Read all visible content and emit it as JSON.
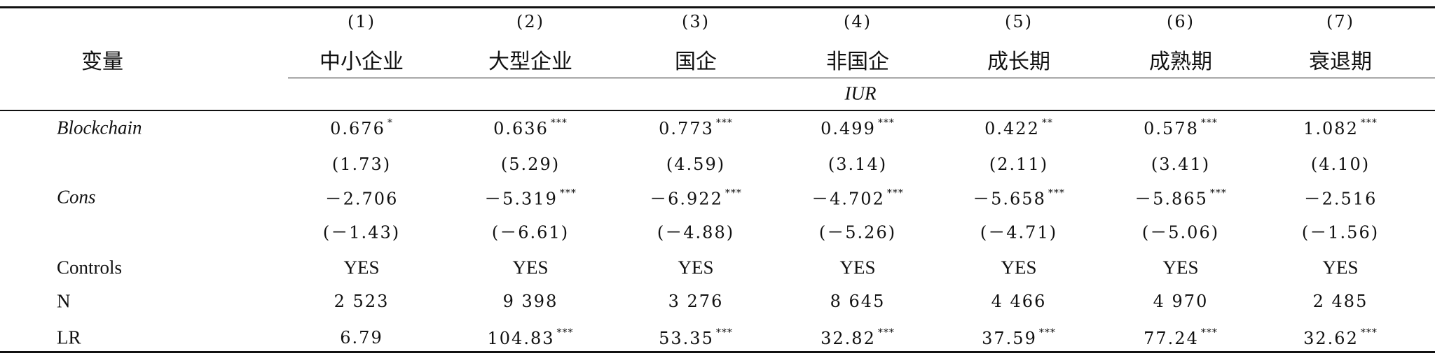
{
  "header": {
    "variable": "变量",
    "dependent": "IUR",
    "numbers": [
      "(1)",
      "(2)",
      "(3)",
      "(4)",
      "(5)",
      "(6)",
      "(7)"
    ],
    "names": [
      "中小企业",
      "大型企业",
      "国企",
      "非国企",
      "成长期",
      "成熟期",
      "衰退期"
    ]
  },
  "table": {
    "rows": [
      {
        "label": "Blockchain",
        "cells": [
          [
            "0.676",
            "*"
          ],
          [
            "0.636",
            "***"
          ],
          [
            "0.773",
            "***"
          ],
          [
            "0.499",
            "***"
          ],
          [
            "0.422",
            "**"
          ],
          [
            "0.578",
            "***"
          ],
          [
            "1.082",
            "***"
          ]
        ]
      },
      {
        "cells": [
          [
            "(1.73)"
          ],
          [
            "(5.29)"
          ],
          [
            "(4.59)"
          ],
          [
            "(3.14)"
          ],
          [
            "(2.11)"
          ],
          [
            "(3.41)"
          ],
          [
            "(4.10)"
          ]
        ]
      },
      {
        "label": "Cons",
        "cells": [
          [
            "－2.706"
          ],
          [
            "－5.319",
            "***"
          ],
          [
            "－6.922",
            "***"
          ],
          [
            "－4.702",
            "***"
          ],
          [
            "－5.658",
            "***"
          ],
          [
            "－5.865",
            "***"
          ],
          [
            "－2.516"
          ]
        ]
      },
      {
        "cells": [
          [
            "(－1.43)"
          ],
          [
            "(－6.61)"
          ],
          [
            "(－4.88)"
          ],
          [
            "(－5.26)"
          ],
          [
            "(－4.71)"
          ],
          [
            "(－5.06)"
          ],
          [
            "(－1.56)"
          ]
        ]
      },
      {
        "label": "Controls",
        "cells": [
          [
            "YES"
          ],
          [
            "YES"
          ],
          [
            "YES"
          ],
          [
            "YES"
          ],
          [
            "YES"
          ],
          [
            "YES"
          ],
          [
            "YES"
          ]
        ]
      },
      {
        "label": "N",
        "cells": [
          [
            "2 523"
          ],
          [
            "9 398"
          ],
          [
            "3 276"
          ],
          [
            "8 645"
          ],
          [
            "4 466"
          ],
          [
            "4 970"
          ],
          [
            "2 485"
          ]
        ]
      },
      {
        "label": "LR",
        "cells": [
          [
            "6.79"
          ],
          [
            "104.83",
            "***"
          ],
          [
            "53.35",
            "***"
          ],
          [
            "32.82",
            "***"
          ],
          [
            "37.59",
            "***"
          ],
          [
            "77.24",
            "***"
          ],
          [
            "32.62",
            "***"
          ]
        ]
      }
    ]
  }
}
